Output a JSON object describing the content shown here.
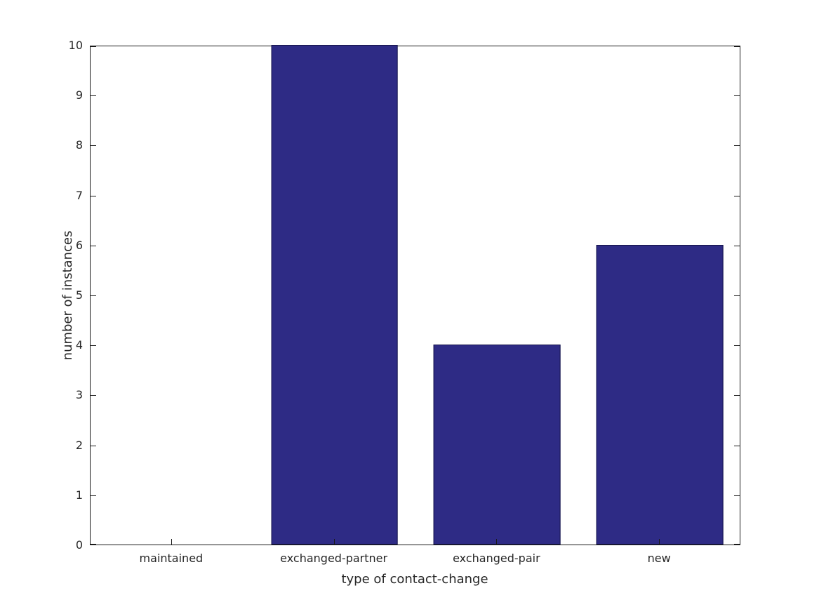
{
  "chart_data": {
    "type": "bar",
    "title": "",
    "categories": [
      "maintained",
      "exchanged-partner",
      "exchanged-pair",
      "new"
    ],
    "values": [
      0,
      10,
      4,
      6
    ],
    "xlabel": "type of contact-change",
    "ylabel": "number of instances",
    "ylim": [
      0,
      10
    ],
    "yticks": [
      0,
      1,
      2,
      3,
      4,
      5,
      6,
      7,
      8,
      9,
      10
    ],
    "bar_color": "#2e2b85",
    "bar_edge_color": "#15144a",
    "axis_color": "#1a1a1a",
    "grid": false,
    "legend": null,
    "bar_width_fraction": 0.78
  }
}
